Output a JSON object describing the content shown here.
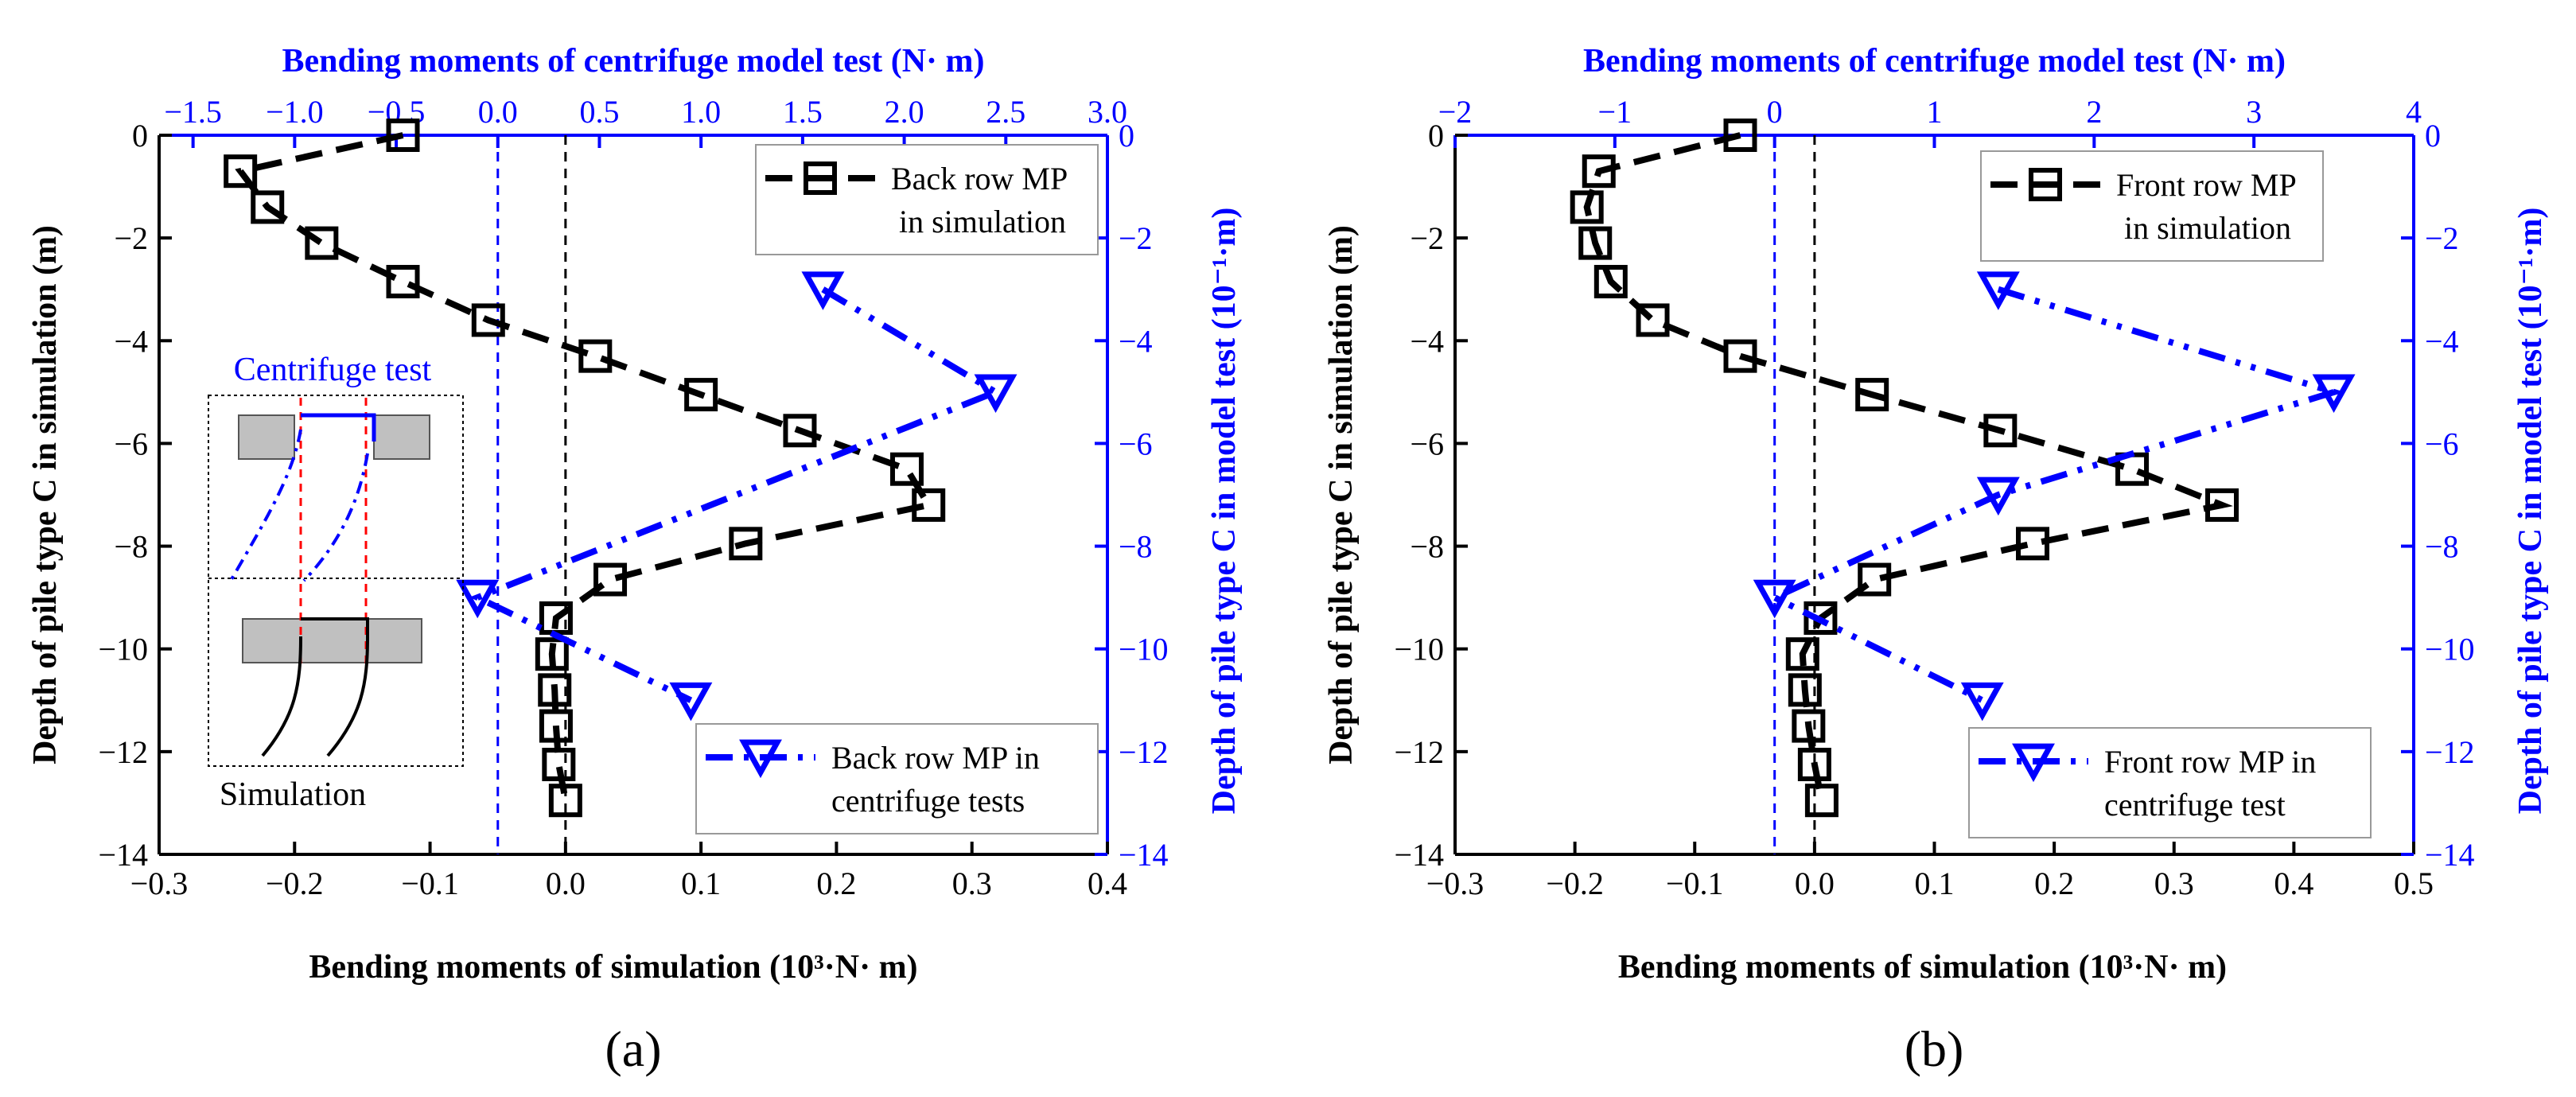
{
  "chart_data": [
    {
      "panel_label": "(a)",
      "type": "line",
      "top_title": "Bending moments of centrifuge model test (N· m)",
      "xlabel": "Bending moments of  simulation (10³·N· m)",
      "ylabel_left": "Depth of pile type C in simulation (m)",
      "ylabel_right": "Depth of pile type C in model test (10⁻¹·m)",
      "xlim_bottom": [
        -0.3,
        0.4
      ],
      "xticks_bottom": [
        -0.3,
        -0.2,
        -0.1,
        0.0,
        0.1,
        0.2,
        0.3,
        0.4
      ],
      "xtick_labels_bottom": [
        "−0.3",
        "−0.2",
        "−0.1",
        "0.0",
        "0.1",
        "0.2",
        "0.3",
        "0.4"
      ],
      "xlim_top": [
        -1.667,
        3.0
      ],
      "xticks_top": [
        -1.5,
        -1.0,
        -0.5,
        0.0,
        0.5,
        1.0,
        1.5,
        2.0,
        2.5,
        3.0
      ],
      "xtick_labels_top": [
        "−1.5",
        "−1.0",
        "−0.5",
        "0.0",
        "0.5",
        "1.0",
        "1.5",
        "2.0",
        "2.5",
        "3.0"
      ],
      "ylim": [
        -14,
        0
      ],
      "yticks": [
        0,
        -2,
        -4,
        -6,
        -8,
        -10,
        -12,
        -14
      ],
      "ytick_labels": [
        "0",
        "−2",
        "−4",
        "−6",
        "−8",
        "−10",
        "−12",
        "−14"
      ],
      "series": [
        {
          "name": "Back row MP in simulation",
          "legend_lines": [
            "Back row MP",
            "in simulation"
          ],
          "axis": "bottom",
          "color": "#000000",
          "x": [
            -0.12,
            -0.24,
            -0.22,
            -0.18,
            -0.12,
            -0.057,
            0.022,
            0.1,
            0.173,
            0.252,
            0.268,
            0.133,
            0.033,
            -0.007,
            -0.01,
            -0.008,
            -0.007,
            -0.005,
            0.0
          ],
          "y": [
            0,
            -0.7,
            -1.4,
            -2.1,
            -2.85,
            -3.6,
            -4.3,
            -5.05,
            -5.75,
            -6.5,
            -7.2,
            -7.95,
            -8.65,
            -9.4,
            -10.1,
            -10.8,
            -11.5,
            -12.25,
            -12.95
          ]
        },
        {
          "name": "Back row MP in centrifuge tests",
          "legend_lines": [
            "Back row MP in",
            "centrifuge tests"
          ],
          "axis": "top",
          "color": "#0000ff",
          "x": [
            1.6,
            2.45,
            -0.1,
            0.95
          ],
          "y": [
            -3,
            -5,
            -9,
            -11
          ]
        }
      ],
      "reference_lines": [
        {
          "axis": "bottom",
          "x": 0.0,
          "color": "#000000"
        },
        {
          "axis": "top",
          "x": 0.0,
          "color": "#0000ff"
        }
      ],
      "inset": {
        "top_label": "Centrifuge test",
        "bottom_label": "Simulation"
      }
    },
    {
      "panel_label": "(b)",
      "type": "line",
      "top_title": "Bending moments of centrifuge model test (N· m)",
      "xlabel": "Bending moments of  simulation (10³·N· m)",
      "ylabel_left": "Depth of pile type C in simulation (m)",
      "ylabel_right": "Depth of pile type C in model test (10⁻¹·m)",
      "xlim_bottom": [
        -0.3,
        0.5
      ],
      "xticks_bottom": [
        -0.3,
        -0.2,
        -0.1,
        0.0,
        0.1,
        0.2,
        0.3,
        0.4,
        0.5
      ],
      "xtick_labels_bottom": [
        "−0.3",
        "−0.2",
        "−0.1",
        "0.0",
        "0.1",
        "0.2",
        "0.3",
        "0.4",
        "0.5"
      ],
      "xlim_top": [
        -2,
        4
      ],
      "xticks_top": [
        -2,
        -1,
        0,
        1,
        2,
        3,
        4
      ],
      "xtick_labels_top": [
        "−2",
        "−1",
        "0",
        "1",
        "2",
        "3",
        "4"
      ],
      "ylim": [
        -14,
        0
      ],
      "yticks": [
        0,
        -2,
        -4,
        -6,
        -8,
        -10,
        -12,
        -14
      ],
      "ytick_labels": [
        "0",
        "−2",
        "−4",
        "−6",
        "−8",
        "−10",
        "−12",
        "−14"
      ],
      "series": [
        {
          "name": "Front row MP in simulation",
          "legend_lines": [
            "Front row MP",
            "in simulation"
          ],
          "axis": "bottom",
          "color": "#000000",
          "x": [
            -0.062,
            -0.18,
            -0.19,
            -0.183,
            -0.17,
            -0.135,
            -0.062,
            0.048,
            0.155,
            0.265,
            0.34,
            0.182,
            0.05,
            0.005,
            -0.01,
            -0.008,
            -0.005,
            0.0,
            0.006
          ],
          "y": [
            0,
            -0.7,
            -1.4,
            -2.1,
            -2.85,
            -3.6,
            -4.3,
            -5.05,
            -5.75,
            -6.5,
            -7.2,
            -7.95,
            -8.65,
            -9.4,
            -10.1,
            -10.8,
            -11.5,
            -12.25,
            -12.95
          ]
        },
        {
          "name": "Front row MP in centrifuge test",
          "legend_lines": [
            "Front row MP in",
            "centrifuge  test"
          ],
          "axis": "top",
          "color": "#0000ff",
          "x": [
            1.4,
            3.5,
            1.4,
            0.0,
            1.3
          ],
          "y": [
            -3,
            -5,
            -7,
            -9,
            -11
          ]
        }
      ],
      "reference_lines": [
        {
          "axis": "bottom",
          "x": 0.0,
          "color": "#000000"
        },
        {
          "axis": "top",
          "x": 0.0,
          "color": "#0000ff"
        }
      ]
    }
  ]
}
